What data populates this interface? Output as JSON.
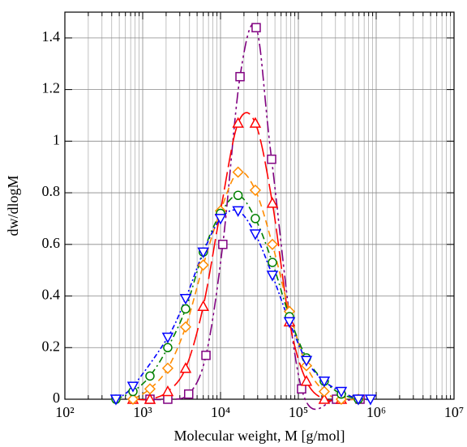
{
  "chart_data": {
    "type": "line",
    "xlabel": "Molecular weight, M [g/mol]",
    "ylabel": "dw/dlogM",
    "xscale": "log",
    "xlim": [
      100,
      10000000
    ],
    "xticks": [
      {
        "value": 100,
        "label": "10²"
      },
      {
        "value": 1000,
        "label": "10³"
      },
      {
        "value": 10000,
        "label": "10⁴"
      },
      {
        "value": 100000,
        "label": "10⁵"
      },
      {
        "value": 1000000,
        "label": "10⁶"
      },
      {
        "value": 10000000,
        "label": "10⁷"
      }
    ],
    "ylim": [
      0,
      1.5
    ],
    "yticks": [
      0,
      0.2,
      0.4,
      0.6,
      0.8,
      1,
      1.2,
      1.4
    ],
    "grid": true,
    "minor_grid": true,
    "series": [
      {
        "color": "#800080",
        "marker": "square",
        "dash": "14 4 3 4 3 4",
        "x": [
          1240,
          2100,
          3900,
          6500,
          10700,
          17800,
          28700,
          45300,
          110000,
          309000,
          620000
        ],
        "values": [
          0,
          0,
          0.02,
          0.17,
          0.6,
          1.25,
          1.44,
          0.93,
          0.04,
          0,
          0
        ]
      },
      {
        "color": "#ff0000",
        "marker": "triangle-up",
        "dash": "22 6",
        "x": [
          750,
          1240,
          2100,
          3560,
          6000,
          10000,
          16800,
          28000,
          46400,
          76800,
          127000,
          215000,
          356000
        ],
        "values": [
          0,
          0,
          0.03,
          0.12,
          0.36,
          0.73,
          1.07,
          1.07,
          0.76,
          0.3,
          0.07,
          0,
          0
        ]
      },
      {
        "color": "#ff8c00",
        "marker": "diamond",
        "dash": "8 5",
        "x": [
          750,
          1240,
          2100,
          3560,
          6000,
          10000,
          16800,
          28000,
          46400,
          76800,
          127000,
          215000,
          356000,
          590000
        ],
        "values": [
          0,
          0.04,
          0.12,
          0.28,
          0.52,
          0.73,
          0.88,
          0.81,
          0.6,
          0.34,
          0.13,
          0.03,
          0,
          0
        ]
      },
      {
        "color": "#008000",
        "marker": "circle",
        "dash": "8 4 2 4",
        "x": [
          453,
          750,
          1240,
          2100,
          3560,
          6000,
          10000,
          16800,
          28000,
          46400,
          76800,
          127000,
          215000,
          356000,
          590000
        ],
        "values": [
          0,
          0.03,
          0.09,
          0.2,
          0.35,
          0.57,
          0.72,
          0.79,
          0.7,
          0.53,
          0.32,
          0.16,
          0.07,
          0.02,
          0
        ]
      },
      {
        "color": "#0000ff",
        "marker": "triangle-down",
        "dash": "6 3 2 3",
        "x": [
          453,
          750,
          2100,
          3560,
          6000,
          10000,
          16800,
          28000,
          46400,
          76800,
          127000,
          215000,
          356000,
          590000,
          845000
        ],
        "values": [
          0,
          0.05,
          0.24,
          0.39,
          0.57,
          0.7,
          0.73,
          0.64,
          0.48,
          0.3,
          0.15,
          0.07,
          0.03,
          0,
          0
        ]
      }
    ]
  }
}
